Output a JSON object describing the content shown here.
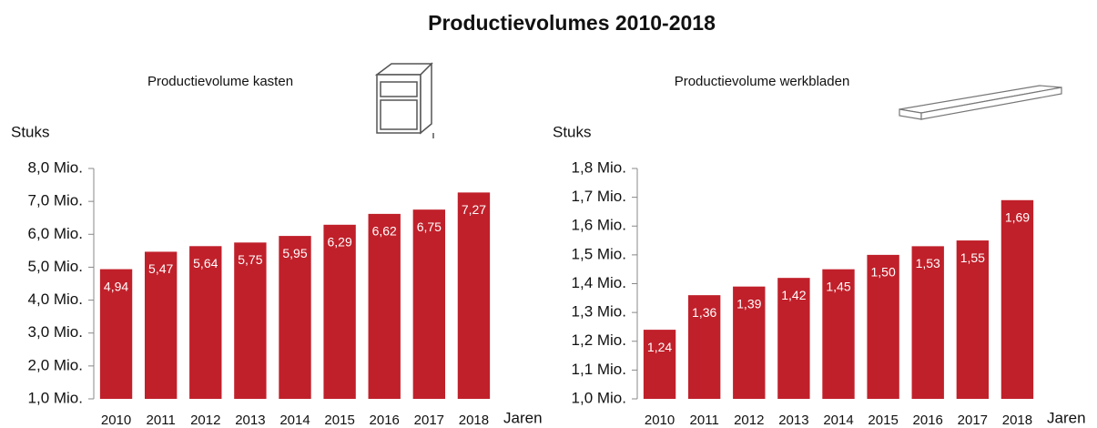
{
  "title": "Productievolumes 2010-2018",
  "chart_data": [
    {
      "type": "bar",
      "subtitle": "Productievolume kasten",
      "y_label": "Stuks",
      "x_label": "Jaren",
      "categories": [
        "2010",
        "2011",
        "2012",
        "2013",
        "2014",
        "2015",
        "2016",
        "2017",
        "2018"
      ],
      "values": [
        4.94,
        5.47,
        5.64,
        5.75,
        5.95,
        6.29,
        6.62,
        6.75,
        7.27
      ],
      "value_labels": [
        "4,94",
        "5,47",
        "5,64",
        "5,75",
        "5,95",
        "6,29",
        "6,62",
        "6,75",
        "7,27"
      ],
      "color": "#c0202a",
      "ylim": [
        1.0,
        8.0
      ],
      "yticks": [
        {
          "value": 1.0,
          "label": "1,0 Mio."
        },
        {
          "value": 2.0,
          "label": "2,0 Mio."
        },
        {
          "value": 3.0,
          "label": "3,0 Mio."
        },
        {
          "value": 4.0,
          "label": "4,0 Mio."
        },
        {
          "value": 5.0,
          "label": "5,0 Mio."
        },
        {
          "value": 6.0,
          "label": "6,0 Mio."
        },
        {
          "value": 7.0,
          "label": "7,0 Mio."
        },
        {
          "value": 8.0,
          "label": "8,0 Mio."
        }
      ],
      "grid": false
    },
    {
      "type": "bar",
      "subtitle": "Productievolume werkbladen",
      "y_label": "Stuks",
      "x_label": "Jaren",
      "categories": [
        "2010",
        "2011",
        "2012",
        "2013",
        "2014",
        "2015",
        "2016",
        "2017",
        "2018"
      ],
      "values": [
        1.24,
        1.36,
        1.39,
        1.42,
        1.45,
        1.5,
        1.53,
        1.55,
        1.69
      ],
      "value_labels": [
        "1,24",
        "1,36",
        "1,39",
        "1,42",
        "1,45",
        "1,50",
        "1,53",
        "1,55",
        "1,69"
      ],
      "color": "#c0202a",
      "ylim": [
        1.0,
        1.8
      ],
      "yticks": [
        {
          "value": 1.0,
          "label": "1,0 Mio."
        },
        {
          "value": 1.1,
          "label": "1,1 Mio."
        },
        {
          "value": 1.2,
          "label": "1,2 Mio."
        },
        {
          "value": 1.3,
          "label": "1,3 Mio."
        },
        {
          "value": 1.4,
          "label": "1,4 Mio."
        },
        {
          "value": 1.5,
          "label": "1,5 Mio."
        },
        {
          "value": 1.6,
          "label": "1,6 Mio."
        },
        {
          "value": 1.7,
          "label": "1,7 Mio."
        },
        {
          "value": 1.8,
          "label": "1,8 Mio."
        }
      ],
      "grid": false
    }
  ]
}
